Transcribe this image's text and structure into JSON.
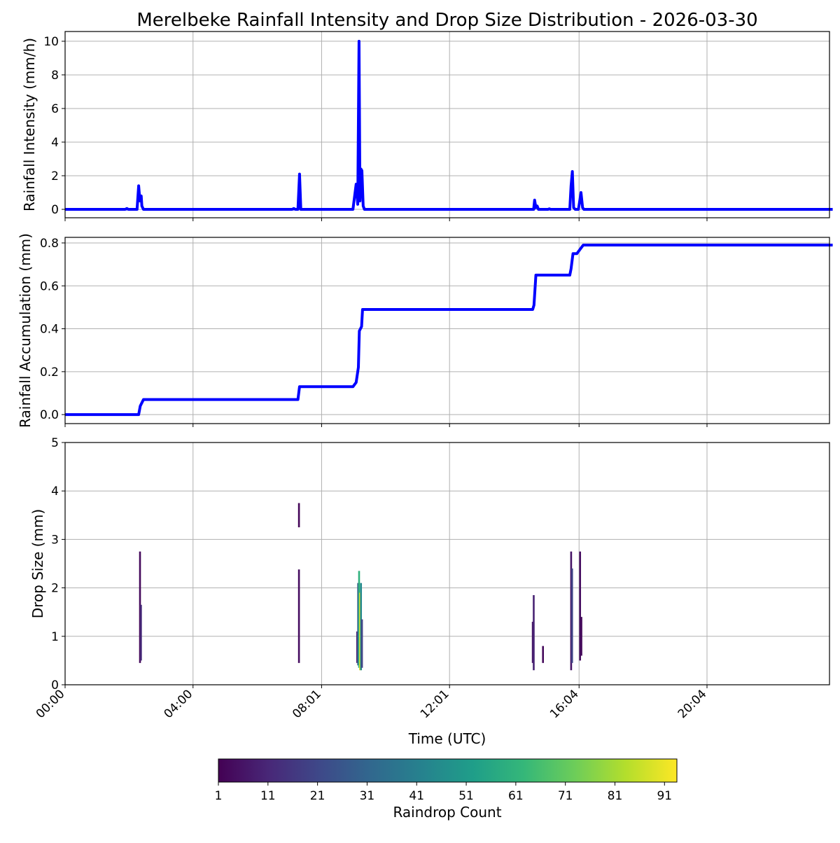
{
  "chart_data": [
    {
      "type": "line",
      "title": "Merelbeke Rainfall Intensity and Drop Size Distribution - 2026-03-30",
      "ylabel": "Rainfall Intensity (mm/h)",
      "ylim": [
        -0.5,
        10.58
      ],
      "yticks": [
        0,
        2,
        4,
        6,
        8,
        10
      ],
      "grid": true,
      "color": "#0000ff",
      "x_hours": [
        0,
        1.88,
        1.93,
        1.98,
        2.25,
        2.3,
        2.34,
        2.38,
        2.4,
        2.45,
        2.5,
        7.1,
        7.15,
        7.2,
        7.28,
        7.33,
        7.37,
        7.42,
        9.0,
        9.1,
        9.15,
        9.19,
        9.22,
        9.25,
        9.28,
        9.32,
        9.36,
        9.4,
        14.6,
        14.65,
        14.68,
        14.72,
        14.76,
        14.8,
        15.1,
        15.14,
        15.18,
        15.78,
        15.82,
        15.86,
        15.9,
        15.95,
        16.05,
        16.13,
        16.18,
        16.22,
        24
      ],
      "values": [
        0,
        0,
        0.05,
        0,
        0,
        1.4,
        0.5,
        0.8,
        0.2,
        0,
        0,
        0,
        0.05,
        0,
        0,
        2.1,
        0,
        0,
        0,
        1.5,
        0.3,
        10,
        0.5,
        2.4,
        2.3,
        0.2,
        0,
        0,
        0,
        0,
        0.55,
        0.1,
        0.2,
        0,
        0,
        0.03,
        0,
        0,
        1.4,
        2.25,
        0.1,
        0,
        0,
        1.0,
        0.1,
        0,
        0
      ]
    },
    {
      "type": "line",
      "ylabel": "Rainfall Accumulation (mm)",
      "ylim": [
        -0.042,
        0.826
      ],
      "yticks": [
        0.0,
        0.2,
        0.4,
        0.6,
        0.8
      ],
      "grid": true,
      "color": "#0000ff",
      "x_hours": [
        0,
        2.3,
        2.35,
        2.45,
        7.28,
        7.33,
        7.38,
        9.0,
        9.1,
        9.17,
        9.2,
        9.27,
        9.3,
        14.62,
        14.66,
        14.72,
        15.78,
        15.82,
        15.88,
        16.0,
        16.15,
        16.2,
        24
      ],
      "values": [
        0,
        0,
        0.04,
        0.07,
        0.07,
        0.13,
        0.13,
        0.13,
        0.15,
        0.22,
        0.39,
        0.41,
        0.49,
        0.49,
        0.51,
        0.65,
        0.65,
        0.68,
        0.75,
        0.75,
        0.78,
        0.79,
        0.79
      ]
    },
    {
      "type": "heatmap",
      "ylabel": "Drop Size (mm)",
      "xlabel": "Time (UTC)",
      "ylim": [
        0,
        5
      ],
      "yticks": [
        0,
        1,
        2,
        3,
        4,
        5
      ],
      "grid": true,
      "xticks_hours": [
        0,
        4,
        8.02,
        12.02,
        16.07,
        20.07
      ],
      "xtick_labels": [
        "00:00",
        "04:00",
        "08:01",
        "12:01",
        "16:04",
        "20:04"
      ],
      "xlim_hours": [
        0,
        23.9
      ],
      "bars": [
        {
          "t": 2.34,
          "d0": 0.45,
          "d1": 2.75,
          "c": 3
        },
        {
          "t": 2.37,
          "d0": 0.5,
          "d1": 1.65,
          "c": 12
        },
        {
          "t": 7.31,
          "d0": 3.25,
          "d1": 3.75,
          "c": 2
        },
        {
          "t": 7.31,
          "d0": 0.45,
          "d1": 2.38,
          "c": 4
        },
        {
          "t": 9.13,
          "d0": 0.45,
          "d1": 1.1,
          "c": 10
        },
        {
          "t": 9.16,
          "d0": 0.4,
          "d1": 2.1,
          "c": 28
        },
        {
          "t": 9.19,
          "d0": 0.35,
          "d1": 2.35,
          "c": 60
        },
        {
          "t": 9.22,
          "d0": 0.3,
          "d1": 1.9,
          "c": 90
        },
        {
          "t": 9.25,
          "d0": 0.3,
          "d1": 2.1,
          "c": 45
        },
        {
          "t": 9.28,
          "d0": 0.35,
          "d1": 1.35,
          "c": 20
        },
        {
          "t": 14.62,
          "d0": 0.45,
          "d1": 1.3,
          "c": 6
        },
        {
          "t": 14.65,
          "d0": 0.3,
          "d1": 1.85,
          "c": 10
        },
        {
          "t": 14.94,
          "d0": 0.45,
          "d1": 0.8,
          "c": 3
        },
        {
          "t": 15.82,
          "d0": 0.3,
          "d1": 2.75,
          "c": 6
        },
        {
          "t": 15.85,
          "d0": 0.45,
          "d1": 2.4,
          "c": 20
        },
        {
          "t": 16.1,
          "d0": 0.5,
          "d1": 2.75,
          "c": 4
        },
        {
          "t": 16.14,
          "d0": 0.6,
          "d1": 1.4,
          "c": 3
        }
      ]
    },
    {
      "type": "colorbar",
      "label": "Raindrop Count",
      "range": [
        1,
        93.5
      ],
      "ticks": [
        1,
        11,
        21,
        31,
        41,
        51,
        61,
        71,
        81,
        91
      ],
      "colormap": "viridis"
    }
  ]
}
